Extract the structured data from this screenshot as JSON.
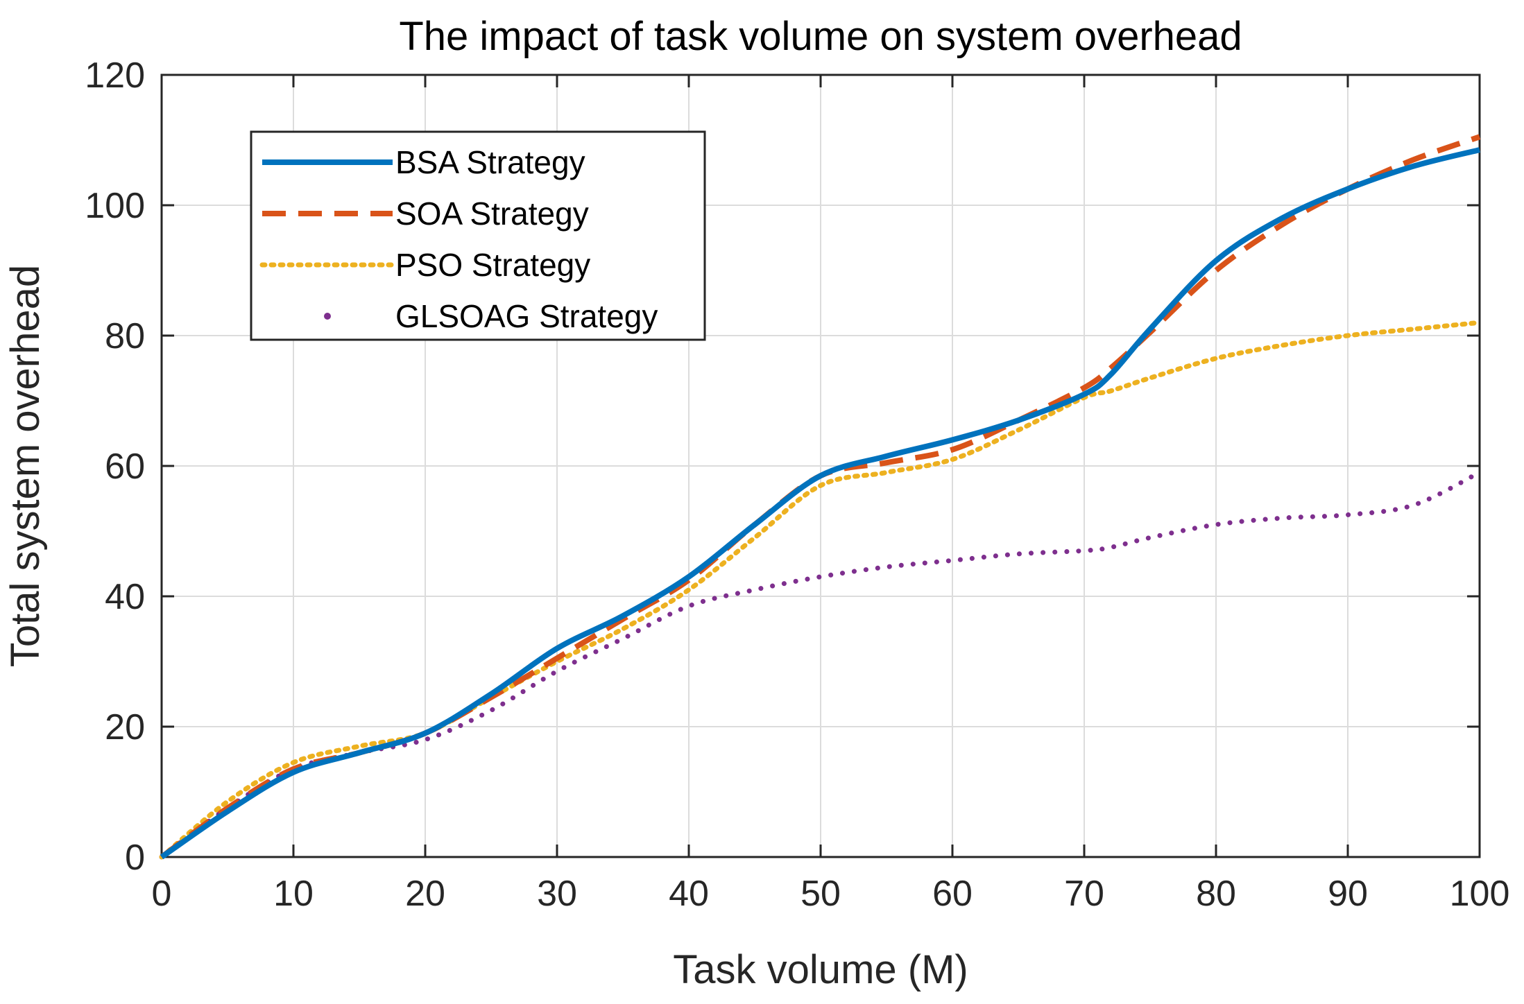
{
  "chart_data": {
    "type": "line",
    "title": "The impact of task volume on system overhead",
    "xlabel": "Task volume (M)",
    "ylabel": "Total system overhead",
    "xlim": [
      0,
      100
    ],
    "ylim": [
      0,
      120
    ],
    "xticks": [
      0,
      10,
      20,
      30,
      40,
      50,
      60,
      70,
      80,
      90,
      100
    ],
    "yticks": [
      0,
      20,
      40,
      60,
      80,
      100,
      120
    ],
    "grid": true,
    "legend_position": "top-left",
    "x": [
      0,
      5,
      10,
      15,
      20,
      25,
      30,
      35,
      40,
      45,
      50,
      55,
      60,
      65,
      70,
      72,
      75,
      80,
      85,
      90,
      95,
      100
    ],
    "series": [
      {
        "name": "BSA Strategy",
        "color": "#0072BD",
        "style": "solid",
        "values": [
          0,
          7,
          13,
          16,
          19,
          25,
          32,
          37,
          43,
          51,
          58.5,
          61.5,
          64,
          67,
          71,
          74,
          81,
          91.5,
          98,
          102.5,
          106,
          108.5
        ]
      },
      {
        "name": "SOA Strategy",
        "color": "#D95319",
        "style": "dashed",
        "values": [
          0,
          7.5,
          13.5,
          16,
          19,
          24.5,
          30.5,
          36.5,
          42.5,
          51,
          58.5,
          60.5,
          62.5,
          67,
          72,
          75,
          80.5,
          90,
          97,
          102.5,
          107,
          110.5
        ]
      },
      {
        "name": "PSO Strategy",
        "color": "#EDB120",
        "style": "dotted",
        "values": [
          0,
          8.5,
          14.5,
          17,
          19,
          24.5,
          30,
          35,
          41,
          49,
          57,
          59,
          61,
          65.5,
          70.5,
          71.5,
          73.5,
          76.5,
          78.5,
          80,
          81,
          82
        ]
      },
      {
        "name": "GLSOAG Strategy",
        "color": "#7E2F8E",
        "style": "sparse-dots",
        "values": [
          0,
          7.5,
          13.5,
          16,
          18,
          22.5,
          28.5,
          33.5,
          38.5,
          41,
          43,
          44.5,
          45.5,
          46.5,
          47,
          47.5,
          49,
          51,
          52,
          52.5,
          54,
          59
        ]
      }
    ]
  }
}
